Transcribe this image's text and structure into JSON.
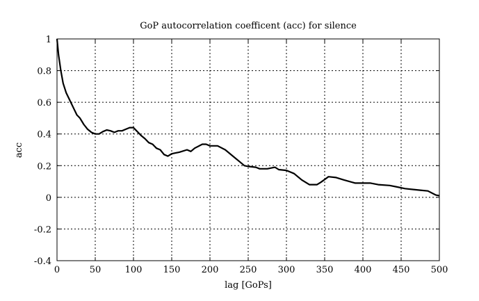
{
  "chart_data": {
    "type": "line",
    "title": "GoP autocorrelation coefficent (acc) for silence",
    "xlabel": "lag [GoPs]",
    "ylabel": "acc",
    "xlim": [
      0,
      500
    ],
    "ylim": [
      -0.4,
      1
    ],
    "xticks": [
      0,
      50,
      100,
      150,
      200,
      250,
      300,
      350,
      400,
      450,
      500
    ],
    "yticks": [
      -0.4,
      -0.2,
      0,
      0.2,
      0.4,
      0.6,
      0.8,
      1
    ],
    "xtick_labels": [
      "0",
      "50",
      "100",
      "150",
      "200",
      "250",
      "300",
      "350",
      "400",
      "450",
      "500"
    ],
    "ytick_labels": [
      "-0.4",
      "-0.2",
      "0",
      "0.2",
      "0.4",
      "0.6",
      "0.8",
      "1"
    ],
    "grid": true,
    "line_color": "#000000",
    "series": [
      {
        "name": "acc",
        "x": [
          0,
          2,
          5,
          8,
          12,
          18,
          22,
          26,
          30,
          35,
          40,
          45,
          50,
          55,
          60,
          65,
          70,
          75,
          80,
          85,
          90,
          95,
          100,
          105,
          110,
          115,
          120,
          125,
          130,
          135,
          140,
          145,
          150,
          160,
          170,
          175,
          180,
          190,
          195,
          200,
          210,
          220,
          230,
          240,
          245,
          250,
          260,
          265,
          275,
          285,
          290,
          300,
          310,
          320,
          330,
          340,
          345,
          355,
          365,
          375,
          390,
          400,
          410,
          420,
          435,
          445,
          455,
          465,
          475,
          485,
          495,
          500
        ],
        "y": [
          1.0,
          0.9,
          0.8,
          0.72,
          0.66,
          0.6,
          0.56,
          0.52,
          0.5,
          0.46,
          0.43,
          0.41,
          0.4,
          0.4,
          0.415,
          0.425,
          0.42,
          0.41,
          0.42,
          0.42,
          0.43,
          0.44,
          0.44,
          0.415,
          0.39,
          0.37,
          0.345,
          0.335,
          0.31,
          0.3,
          0.27,
          0.26,
          0.275,
          0.285,
          0.3,
          0.29,
          0.31,
          0.335,
          0.335,
          0.325,
          0.325,
          0.3,
          0.26,
          0.22,
          0.2,
          0.195,
          0.19,
          0.18,
          0.18,
          0.19,
          0.175,
          0.17,
          0.15,
          0.11,
          0.08,
          0.08,
          0.095,
          0.13,
          0.125,
          0.11,
          0.09,
          0.09,
          0.09,
          0.08,
          0.075,
          0.065,
          0.055,
          0.05,
          0.045,
          0.04,
          0.015,
          0.01
        ]
      }
    ]
  }
}
